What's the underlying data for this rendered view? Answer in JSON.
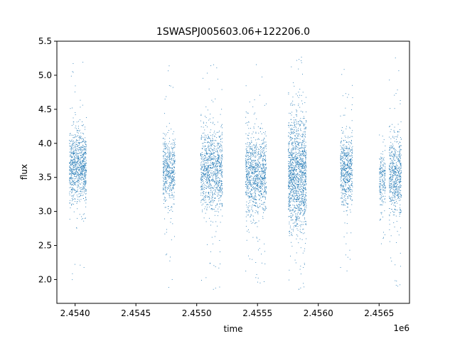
{
  "chart_data": {
    "type": "scatter",
    "title": "1SWASPJ005603.06+122206.0",
    "xlabel": "time",
    "ylabel": "flux",
    "x_offset_label": "1e6",
    "xlim": [
      2.45385,
      2.45675
    ],
    "ylim": [
      1.65,
      5.5
    ],
    "x_ticks": [
      2.454,
      2.4545,
      2.455,
      2.4555,
      2.456,
      2.4565
    ],
    "x_tick_labels": [
      "2.4540",
      "2.4545",
      "2.4550",
      "2.4555",
      "2.4560",
      "2.4565"
    ],
    "y_ticks": [
      2.0,
      2.5,
      3.0,
      3.5,
      4.0,
      4.5,
      5.0,
      5.5
    ],
    "y_tick_labels": [
      "2.0",
      "2.5",
      "3.0",
      "3.5",
      "4.0",
      "4.5",
      "5.0",
      "5.5"
    ],
    "grid": false,
    "marker_color": "#1f77b4",
    "series": [
      {
        "clusters": [
          {
            "x_start": 2.45395,
            "x_end": 2.45409,
            "y_center": 3.65,
            "y_spread": 0.35,
            "y_min": 1.88,
            "y_max": 5.28,
            "density": 900
          },
          {
            "x_start": 2.45472,
            "x_end": 2.45482,
            "y_center": 3.6,
            "y_spread": 0.32,
            "y_min": 1.88,
            "y_max": 5.15,
            "density": 500
          },
          {
            "x_start": 2.45503,
            "x_end": 2.45521,
            "y_center": 3.6,
            "y_spread": 0.38,
            "y_min": 1.82,
            "y_max": 5.25,
            "density": 1000
          },
          {
            "x_start": 2.4554,
            "x_end": 2.45557,
            "y_center": 3.55,
            "y_spread": 0.4,
            "y_min": 1.9,
            "y_max": 5.2,
            "density": 1000
          },
          {
            "x_start": 2.45575,
            "x_end": 2.4559,
            "y_center": 3.55,
            "y_spread": 0.55,
            "y_min": 1.82,
            "y_max": 5.33,
            "density": 1400
          },
          {
            "x_start": 2.45618,
            "x_end": 2.45628,
            "y_center": 3.6,
            "y_spread": 0.33,
            "y_min": 1.95,
            "y_max": 5.3,
            "density": 600
          },
          {
            "x_start": 2.4565,
            "x_end": 2.45655,
            "y_center": 3.5,
            "y_spread": 0.3,
            "y_min": 2.3,
            "y_max": 4.2,
            "density": 200
          },
          {
            "x_start": 2.45658,
            "x_end": 2.45668,
            "y_center": 3.5,
            "y_spread": 0.4,
            "y_min": 1.85,
            "y_max": 5.3,
            "density": 600
          }
        ]
      }
    ]
  }
}
